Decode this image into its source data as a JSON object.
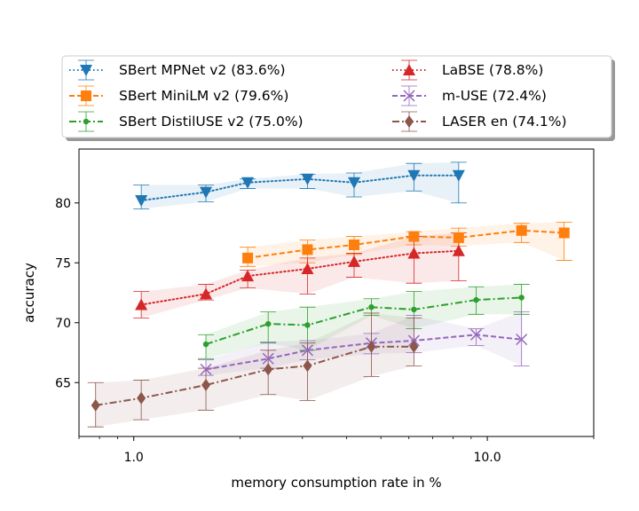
{
  "chart_data": {
    "type": "line",
    "title": "",
    "xlabel": "memory consumption rate in %",
    "ylabel": "accuracy",
    "xscale": "log",
    "xlim": [
      0.7,
      20
    ],
    "ylim": [
      60.5,
      84.5
    ],
    "xticks": [
      1.0,
      10.0
    ],
    "xtick_labels": [
      "1.0",
      "10.0"
    ],
    "yticks": [
      65,
      70,
      75,
      80
    ],
    "ytick_labels": [
      "65",
      "70",
      "75",
      "80"
    ],
    "grid": false,
    "legend_position": "top (above plot, 2 columns)",
    "series": [
      {
        "name": "SBert MPNet v2 (83.6%)",
        "color": "#1f77b4",
        "linestyle": "dotted",
        "marker": "triangle-down",
        "x": [
          1.05,
          1.6,
          2.1,
          3.1,
          4.2,
          6.2,
          8.3
        ],
        "y": [
          80.2,
          80.9,
          81.7,
          82.0,
          81.7,
          82.3,
          82.3
        ],
        "ylow": [
          79.5,
          80.1,
          81.2,
          81.2,
          80.5,
          81.0,
          80.0
        ],
        "yhigh": [
          81.5,
          81.5,
          82.0,
          82.4,
          82.5,
          83.3,
          83.4
        ]
      },
      {
        "name": "SBert MiniLM v2 (79.6%)",
        "color": "#ff7f0e",
        "linestyle": "dashed",
        "marker": "square",
        "x": [
          2.1,
          3.1,
          4.2,
          6.2,
          8.3,
          12.5,
          16.5
        ],
        "y": [
          75.4,
          76.1,
          76.5,
          77.2,
          77.1,
          77.7,
          77.5
        ],
        "ylow": [
          74.7,
          75.0,
          75.7,
          76.5,
          76.4,
          76.7,
          75.2
        ],
        "yhigh": [
          76.3,
          76.9,
          77.2,
          77.6,
          77.9,
          78.3,
          78.4
        ]
      },
      {
        "name": "SBert DistilUSE v2 (75.0%)",
        "color": "#2ca02c",
        "linestyle": "dashdot",
        "marker": "point",
        "x": [
          1.6,
          2.4,
          3.1,
          4.7,
          6.2,
          9.3,
          12.5
        ],
        "y": [
          68.2,
          69.9,
          69.8,
          71.3,
          71.1,
          71.9,
          72.1
        ],
        "ylow": [
          67.0,
          68.3,
          67.7,
          70.6,
          69.5,
          70.7,
          70.7
        ],
        "yhigh": [
          69.0,
          70.9,
          71.3,
          72.0,
          72.6,
          73.0,
          73.2
        ]
      },
      {
        "name": "LaBSE (78.8%)",
        "color": "#d62728",
        "linestyle": "dotted",
        "marker": "triangle-up",
        "x": [
          1.05,
          1.6,
          2.1,
          3.1,
          4.2,
          6.2,
          8.3
        ],
        "y": [
          71.5,
          72.4,
          73.9,
          74.5,
          75.1,
          75.8,
          76.0
        ],
        "ylow": [
          70.4,
          71.9,
          72.9,
          72.4,
          73.8,
          73.3,
          73.5
        ],
        "yhigh": [
          72.6,
          73.2,
          74.4,
          75.4,
          75.8,
          77.2,
          77.5
        ]
      },
      {
        "name": "m-USE (72.4%)",
        "color": "#9467bd",
        "linestyle": "dashed",
        "marker": "x",
        "x": [
          1.6,
          2.4,
          3.1,
          4.7,
          6.2,
          9.3,
          12.5
        ],
        "y": [
          66.1,
          67.0,
          67.7,
          68.3,
          68.5,
          69.0,
          68.6
        ],
        "ylow": [
          65.6,
          66.2,
          66.9,
          67.4,
          67.5,
          68.1,
          66.4
        ],
        "yhigh": [
          66.9,
          68.4,
          68.5,
          69.1,
          70.6,
          69.5,
          70.9
        ]
      },
      {
        "name": "LASER en (74.1%)",
        "color": "#8c564b",
        "linestyle": "dashdot",
        "marker": "diamond",
        "x": [
          0.78,
          1.05,
          1.6,
          2.4,
          3.1,
          4.7,
          6.2
        ],
        "y": [
          63.1,
          63.7,
          64.8,
          66.1,
          66.4,
          68.0,
          68.0
        ],
        "ylow": [
          61.3,
          61.9,
          62.7,
          64.0,
          63.5,
          65.5,
          66.4
        ],
        "yhigh": [
          65.0,
          65.2,
          66.2,
          67.7,
          68.3,
          70.8,
          70.4
        ]
      }
    ]
  }
}
